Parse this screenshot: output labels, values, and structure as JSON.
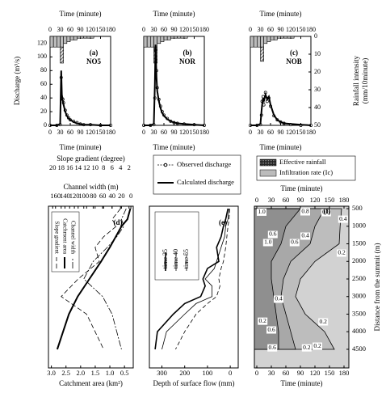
{
  "chart_data": [
    {
      "type": "hydrograph",
      "panel": "(a)",
      "site": "NO5",
      "xlabel": "Time (minute)",
      "xlim": [
        0,
        180
      ],
      "xticks": [
        0,
        30,
        60,
        90,
        120,
        150,
        180
      ],
      "ylabel": "Discharge (m³/s)",
      "ylim": [
        0,
        130
      ],
      "yticks": [
        0,
        20,
        40,
        60,
        80,
        100,
        120
      ],
      "y2lim": [
        0,
        50
      ],
      "rain_bins": [
        0,
        10,
        20,
        30,
        40,
        50,
        60,
        70,
        80,
        90,
        100,
        110,
        120,
        130,
        140,
        150,
        160,
        170,
        180
      ],
      "rain_series": [
        {
          "color": "#bbbbbb",
          "values": [
            6,
            6,
            6,
            6,
            4,
            3,
            2,
            2,
            1,
            1,
            1,
            1,
            1,
            0,
            0,
            0,
            0,
            0
          ]
        },
        {
          "color": "#555555",
          "values": [
            0,
            0,
            0,
            9,
            0,
            0,
            0,
            0,
            0,
            0,
            0,
            0,
            0,
            0,
            0,
            0,
            0,
            0
          ]
        }
      ],
      "x": [
        0,
        20,
        30,
        33,
        35,
        38,
        40,
        45,
        50,
        55,
        60,
        70,
        80,
        90,
        100,
        120,
        150,
        180
      ],
      "series": [
        {
          "name": "Observed discharge",
          "values": [
            0,
            0,
            1,
            70,
            40,
            38,
            33,
            22,
            15,
            11,
            8,
            6,
            4,
            2,
            1,
            1,
            0,
            0
          ]
        },
        {
          "name": "Calculated discharge",
          "values": [
            0,
            0,
            2,
            80,
            45,
            35,
            30,
            20,
            14,
            10,
            8,
            5,
            3,
            2,
            1,
            1,
            0,
            0
          ]
        }
      ]
    },
    {
      "type": "hydrograph",
      "panel": "(b)",
      "site": "NOR",
      "xlabel": "Time (minute)",
      "xlim": [
        0,
        180
      ],
      "xticks": [
        0,
        30,
        60,
        90,
        120,
        150,
        180
      ],
      "ylim": [
        0,
        130
      ],
      "y2lim": [
        0,
        50
      ],
      "rain_bins": [
        0,
        10,
        20,
        30,
        40,
        50,
        60,
        70,
        80,
        90,
        100,
        110,
        120,
        130,
        140,
        150,
        160,
        170,
        180
      ],
      "rain_series": [
        {
          "color": "#bbbbbb",
          "values": [
            6,
            6,
            6,
            6,
            4,
            3,
            2,
            2,
            1,
            1,
            1,
            1,
            1,
            0,
            0,
            0,
            0,
            0
          ]
        },
        {
          "color": "#555555",
          "values": [
            0,
            0,
            0,
            9,
            0,
            0,
            0,
            0,
            0,
            0,
            0,
            0,
            0,
            0,
            0,
            0,
            0,
            0
          ]
        }
      ],
      "x": [
        0,
        20,
        30,
        33,
        35,
        38,
        40,
        45,
        50,
        55,
        60,
        70,
        80,
        90,
        100,
        120,
        150,
        180
      ],
      "series": [
        {
          "values": [
            0,
            0,
            1,
            40,
            110,
            80,
            55,
            38,
            28,
            20,
            15,
            10,
            6,
            4,
            3,
            2,
            1,
            0
          ]
        },
        {
          "values": [
            0,
            0,
            2,
            60,
            118,
            70,
            50,
            35,
            25,
            18,
            14,
            9,
            6,
            4,
            3,
            2,
            1,
            0
          ]
        }
      ]
    },
    {
      "type": "hydrograph",
      "panel": "(c)",
      "site": "NOB",
      "xlabel": "Time (minute)",
      "xlim": [
        0,
        180
      ],
      "xticks": [
        0,
        30,
        60,
        90,
        120,
        150,
        180
      ],
      "ylim": [
        0,
        130
      ],
      "y2label": [
        "Rainfall intensity",
        "(mm/10minute)"
      ],
      "y2lim": [
        0,
        50
      ],
      "y2ticks": [
        0,
        10,
        20,
        30,
        40,
        50
      ],
      "rain_bins": [
        0,
        10,
        20,
        30,
        40,
        50,
        60,
        70,
        80,
        90,
        100,
        110,
        120,
        130,
        140,
        150,
        160,
        170,
        180
      ],
      "rain_series": [
        {
          "name": "Infiltration rate (Ic)",
          "color": "#bbbbbb",
          "values": [
            6,
            6,
            6,
            6,
            4,
            3,
            2,
            2,
            1,
            1,
            1,
            1,
            1,
            0,
            0,
            0,
            0,
            0
          ]
        },
        {
          "name": "Effective rainfall",
          "color": "#555555",
          "values": [
            0,
            0,
            0,
            8,
            0,
            0,
            0,
            0,
            0,
            0,
            0,
            0,
            0,
            0,
            0,
            0,
            0,
            0
          ]
        }
      ],
      "x": [
        0,
        20,
        30,
        33,
        35,
        38,
        40,
        45,
        50,
        55,
        60,
        70,
        80,
        90,
        100,
        120,
        150,
        180
      ],
      "series": [
        {
          "values": [
            0,
            0,
            1,
            15,
            35,
            42,
            30,
            48,
            35,
            40,
            28,
            14,
            8,
            5,
            3,
            1,
            0,
            0
          ]
        },
        {
          "values": [
            0,
            0,
            2,
            20,
            30,
            40,
            35,
            45,
            38,
            42,
            30,
            15,
            8,
            5,
            3,
            2,
            1,
            0
          ]
        }
      ]
    },
    {
      "type": "profile",
      "panel": "(d)",
      "ylim": [
        430,
        5030
      ],
      "y": [
        500,
        800,
        1000,
        1300,
        1600,
        2000,
        2500,
        3000,
        3500,
        4000,
        4500
      ],
      "xaxes": [
        {
          "label": "Slope gradient (degree)",
          "lim": [
            21,
            1
          ],
          "ticks": [
            20,
            18,
            16,
            14,
            12,
            10,
            8,
            6,
            4,
            2
          ]
        },
        {
          "label": "Channel width (m)",
          "lim": [
            175,
            -5
          ],
          "ticks": [
            160,
            140,
            120,
            100,
            80,
            60,
            40,
            20,
            0
          ]
        },
        {
          "label": "Catchment area (km²)",
          "lim": [
            3.1,
            0.2
          ],
          "ticks": [
            {
              "value": 3,
              "label": "3.0"
            },
            2.5,
            {
              "value": 2,
              "label": "2.0"
            },
            1.5,
            {
              "value": 1,
              "label": "1.0"
            },
            0.5
          ]
        }
      ],
      "series": [
        {
          "name": "Slope gradient",
          "xaxis": 0,
          "values": [
            4,
            6,
            5,
            8,
            10,
            9,
            14,
            18,
            12,
            10,
            8
          ]
        },
        {
          "name": "Catchment area",
          "xaxis": 2,
          "values": [
            0.3,
            0.4,
            0.6,
            0.8,
            1,
            1.3,
            1.7,
            2.1,
            2.4,
            2.6,
            2.8
          ]
        },
        {
          "name": "Channel width",
          "xaxis": 1,
          "values": [
            10,
            20,
            15,
            30,
            50,
            80,
            100,
            60,
            40,
            30,
            20
          ]
        }
      ]
    },
    {
      "type": "profile",
      "panel": "(e)",
      "xlabel": "Depth of surface flow (mm)",
      "xlim": [
        355,
        -35
      ],
      "xticks": [
        300,
        200,
        100,
        0
      ],
      "ylim": [
        430,
        5030
      ],
      "y": [
        500,
        800,
        1000,
        1300,
        1600,
        2000,
        2200,
        2500,
        2700,
        3000,
        3200,
        3500,
        4000,
        4500
      ],
      "series": [
        {
          "name": "time 25",
          "values": [
            10,
            20,
            30,
            40,
            60,
            50,
            100,
            120,
            110,
            130,
            200,
            250,
            320,
            330
          ]
        },
        {
          "name": "time 40",
          "values": [
            5,
            10,
            20,
            25,
            40,
            60,
            70,
            110,
            80,
            80,
            150,
            200,
            280,
            300
          ]
        },
        {
          "name": "time 55",
          "values": [
            3,
            5,
            10,
            15,
            20,
            30,
            40,
            50,
            45,
            60,
            100,
            150,
            200,
            240
          ]
        }
      ]
    },
    {
      "type": "contour",
      "panel": "(f)",
      "xlabel": "Time (minute)",
      "xlim": [
        -5,
        190
      ],
      "xticks": [
        0,
        30,
        60,
        90,
        120,
        150,
        180
      ],
      "ylabel": "Distance from the summit (m)",
      "ylim": [
        430,
        5030
      ],
      "yticks": [
        500,
        1000,
        1500,
        2000,
        2500,
        3000,
        3500,
        4000,
        4500
      ],
      "y": [
        500,
        1000,
        1500,
        2000,
        2500,
        3000,
        3500,
        4000,
        4500
      ],
      "contours": [
        {
          "values": [
            175,
            172,
            170,
            120,
            90,
            80,
            100,
            140,
            160
          ]
        },
        {
          "values": [
            140,
            120,
            110,
            70,
            55,
            50,
            60,
            70,
            80
          ]
        },
        {
          "values": [
            90,
            60,
            50,
            30,
            30,
            35,
            40,
            45,
            45
          ]
        }
      ],
      "labels": [
        {
          "text": "1.0",
          "x": 10,
          "y": 600
        },
        {
          "text": "0.8",
          "x": 100,
          "y": 591
        },
        {
          "text": "0.6",
          "x": 143,
          "y": 614
        },
        {
          "text": "0.4",
          "x": 178,
          "y": 800
        },
        {
          "text": "0.6",
          "x": 33,
          "y": 1235
        },
        {
          "text": "0.4",
          "x": 100,
          "y": 1281
        },
        {
          "text": "1.0",
          "x": 23,
          "y": 1465
        },
        {
          "text": "0.6",
          "x": 78,
          "y": 1465
        },
        {
          "text": "0.2",
          "x": 175,
          "y": 1764
        },
        {
          "text": "0.4",
          "x": 45,
          "y": 3075
        },
        {
          "text": "0.2",
          "x": 12,
          "y": 3700
        },
        {
          "text": "0.2",
          "x": 137,
          "y": 3720
        },
        {
          "text": "0.6",
          "x": 30,
          "y": 3950
        },
        {
          "text": "0.2",
          "x": 125,
          "y": 4410
        },
        {
          "text": "0.6",
          "x": 32,
          "y": 4460
        },
        {
          "text": "0.2",
          "x": 103,
          "y": 4460
        }
      ]
    }
  ]
}
